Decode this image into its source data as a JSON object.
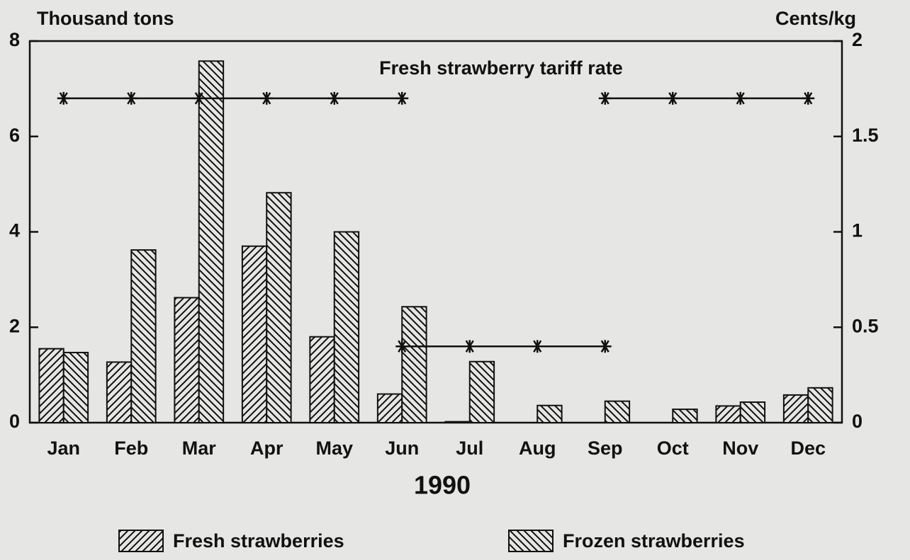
{
  "chart_data": {
    "type": "bar",
    "y_label": "Thousand tons",
    "y2_label": "Cents/kg",
    "x_label": "1990",
    "categories": [
      "Jan",
      "Feb",
      "Mar",
      "Apr",
      "May",
      "Jun",
      "Jul",
      "Aug",
      "Sep",
      "Oct",
      "Nov",
      "Dec"
    ],
    "series": [
      {
        "name": "Fresh strawberries",
        "pattern": "forward-hatch",
        "color": "#111111",
        "values": [
          1.55,
          1.27,
          2.62,
          3.7,
          1.8,
          0.6,
          0.02,
          0,
          0,
          0,
          0.35,
          0.58
        ]
      },
      {
        "name": "Frozen strawberries",
        "pattern": "back-hatch",
        "color": "#111111",
        "values": [
          1.47,
          3.62,
          7.58,
          4.82,
          4.0,
          2.43,
          1.28,
          0.36,
          0.45,
          0.28,
          0.43,
          0.73
        ]
      }
    ],
    "line_series": [
      {
        "name": "Fresh strawberry tariff rate",
        "type": "line",
        "axis": "y2",
        "marker": "asterisk",
        "color": "#111111",
        "values": [
          1.7,
          1.7,
          1.7,
          1.7,
          1.7,
          1.7,
          null,
          null,
          1.7,
          1.7,
          1.7,
          1.7
        ]
      },
      {
        "type": "line",
        "axis": "y2",
        "marker": "asterisk",
        "color": "#111111",
        "values": [
          null,
          null,
          null,
          null,
          null,
          0.4,
          0.4,
          0.4,
          0.4,
          null,
          null,
          null
        ]
      }
    ],
    "ylim": [
      0,
      8
    ],
    "yticks": [
      0,
      2,
      4,
      6,
      8
    ],
    "y2lim": [
      0,
      2
    ],
    "y2ticks": [
      0,
      0.5,
      1,
      1.5,
      2
    ],
    "legend": "bottom",
    "grid": false
  }
}
